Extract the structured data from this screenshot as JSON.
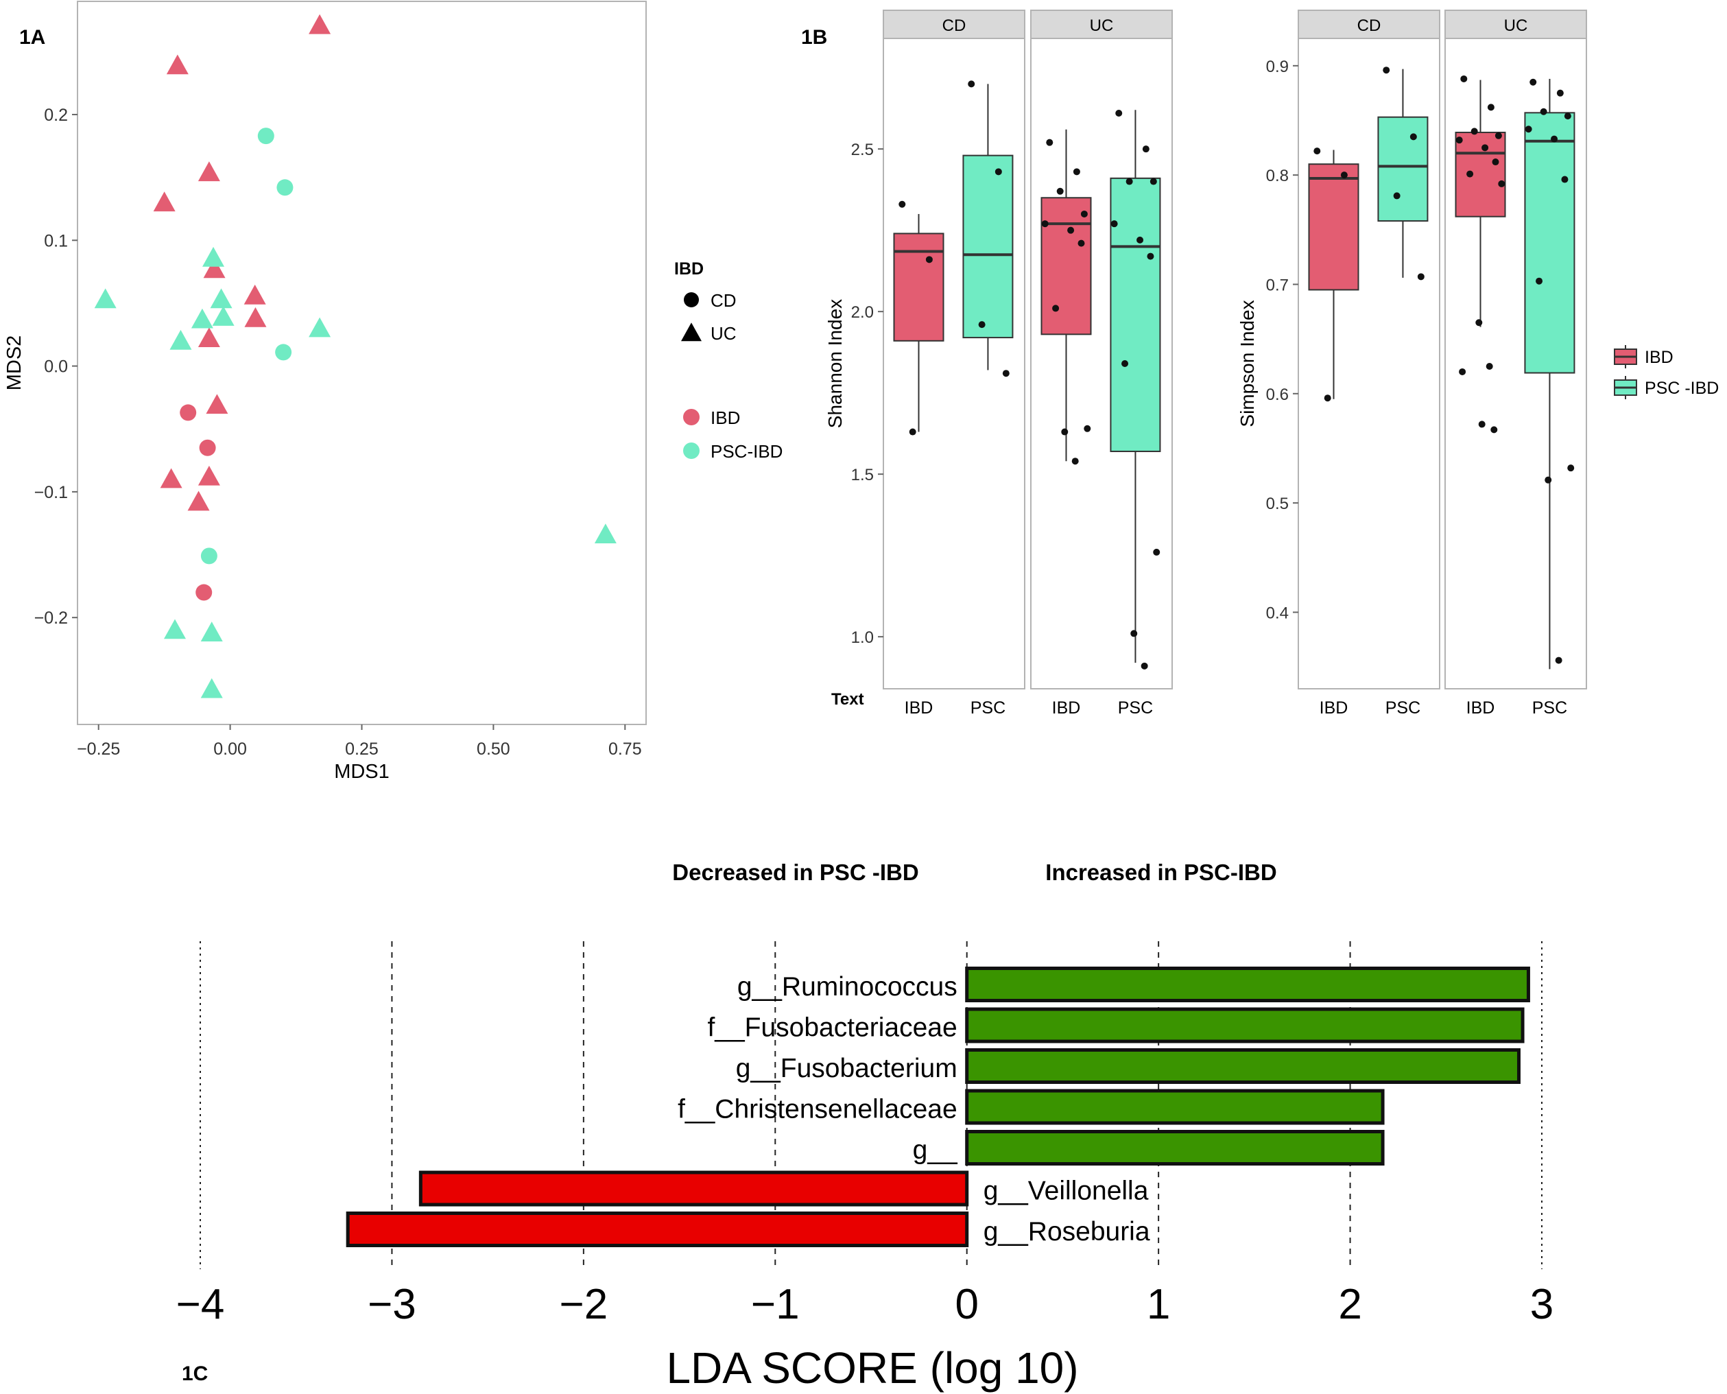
{
  "colors": {
    "ibd": "#e35d72",
    "psc_ibd": "#70ebc3",
    "increased": "#3a9400",
    "decreased": "#e80000",
    "strip": "#d9d9d9",
    "frame": "#b3b3b3",
    "grid": "#d0d0d0",
    "point": "#111111"
  },
  "chart_data": [
    {
      "panel": "1A",
      "panel_label": "1A",
      "type": "scatter",
      "xlabel": "MDS1",
      "ylabel": "MDS2",
      "xlim": [
        -0.29,
        0.79
      ],
      "ylim": [
        -0.285,
        0.29
      ],
      "xticks": [
        -0.25,
        0.0,
        0.25,
        0.5,
        0.75
      ],
      "xtick_labels": [
        "−0.25",
        "0.00",
        "0.25",
        "0.50",
        "0.75"
      ],
      "yticks": [
        -0.2,
        -0.1,
        0.0,
        0.1,
        0.2
      ],
      "ytick_labels": [
        "−0.2",
        "−0.1",
        "0.0",
        "0.1",
        "0.2"
      ],
      "grid": false,
      "legend_shape_title": "IBD",
      "legend_shape": [
        {
          "label": "CD",
          "shape": "circle"
        },
        {
          "label": "UC",
          "shape": "triangle"
        }
      ],
      "legend_color": [
        {
          "label": "IBD",
          "color": "#e35d72"
        },
        {
          "label": "PSC-IBD",
          "color": "#70ebc3"
        }
      ],
      "legend_position": "right",
      "points": [
        {
          "x": 0.17,
          "y": 0.27,
          "shape": "UC",
          "group": "IBD"
        },
        {
          "x": -0.1,
          "y": 0.238,
          "shape": "UC",
          "group": "IBD"
        },
        {
          "x": -0.04,
          "y": 0.153,
          "shape": "UC",
          "group": "IBD"
        },
        {
          "x": -0.125,
          "y": 0.129,
          "shape": "UC",
          "group": "IBD"
        },
        {
          "x": -0.03,
          "y": 0.076,
          "shape": "UC",
          "group": "IBD"
        },
        {
          "x": 0.047,
          "y": 0.055,
          "shape": "UC",
          "group": "IBD"
        },
        {
          "x": 0.048,
          "y": 0.037,
          "shape": "UC",
          "group": "IBD"
        },
        {
          "x": -0.04,
          "y": 0.021,
          "shape": "UC",
          "group": "IBD"
        },
        {
          "x": -0.025,
          "y": -0.032,
          "shape": "UC",
          "group": "IBD"
        },
        {
          "x": -0.112,
          "y": -0.091,
          "shape": "UC",
          "group": "IBD"
        },
        {
          "x": -0.04,
          "y": -0.089,
          "shape": "UC",
          "group": "IBD"
        },
        {
          "x": -0.06,
          "y": -0.109,
          "shape": "UC",
          "group": "IBD"
        },
        {
          "x": -0.08,
          "y": -0.037,
          "shape": "CD",
          "group": "IBD"
        },
        {
          "x": -0.043,
          "y": -0.065,
          "shape": "CD",
          "group": "IBD"
        },
        {
          "x": -0.05,
          "y": -0.18,
          "shape": "CD",
          "group": "IBD"
        },
        {
          "x": 0.068,
          "y": 0.183,
          "shape": "CD",
          "group": "PSC-IBD"
        },
        {
          "x": 0.104,
          "y": 0.142,
          "shape": "CD",
          "group": "PSC-IBD"
        },
        {
          "x": 0.101,
          "y": 0.011,
          "shape": "CD",
          "group": "PSC-IBD"
        },
        {
          "x": -0.04,
          "y": -0.151,
          "shape": "CD",
          "group": "PSC-IBD"
        },
        {
          "x": -0.032,
          "y": 0.085,
          "shape": "UC",
          "group": "PSC-IBD"
        },
        {
          "x": -0.017,
          "y": 0.052,
          "shape": "UC",
          "group": "PSC-IBD"
        },
        {
          "x": -0.237,
          "y": 0.052,
          "shape": "UC",
          "group": "PSC-IBD"
        },
        {
          "x": -0.053,
          "y": 0.036,
          "shape": "UC",
          "group": "PSC-IBD"
        },
        {
          "x": -0.013,
          "y": 0.038,
          "shape": "UC",
          "group": "PSC-IBD"
        },
        {
          "x": -0.094,
          "y": 0.019,
          "shape": "UC",
          "group": "PSC-IBD"
        },
        {
          "x": 0.17,
          "y": 0.029,
          "shape": "UC",
          "group": "PSC-IBD"
        },
        {
          "x": 0.713,
          "y": -0.135,
          "shape": "UC",
          "group": "PSC-IBD"
        },
        {
          "x": -0.105,
          "y": -0.211,
          "shape": "UC",
          "group": "PSC-IBD"
        },
        {
          "x": -0.035,
          "y": -0.213,
          "shape": "UC",
          "group": "PSC-IBD"
        },
        {
          "x": -0.035,
          "y": -0.258,
          "shape": "UC",
          "group": "PSC-IBD"
        }
      ]
    },
    {
      "panel": "1B",
      "panel_label": "1B",
      "type": "box",
      "metric": "Shannon",
      "ylabel": "Shannon Index",
      "ylim": [
        0.84,
        2.84
      ],
      "yticks": [
        1.0,
        1.5,
        2.0,
        2.5
      ],
      "ytick_labels": [
        "1.0",
        "1.5",
        "2.0",
        "2.5"
      ],
      "corner_label": "Text",
      "categories": [
        "IBD",
        "PSC"
      ],
      "facets": [
        {
          "name": "CD",
          "boxes": [
            {
              "group": "IBD",
              "q1": 1.91,
              "median": 2.185,
              "q3": 2.24,
              "lower": 1.63,
              "upper": 2.3,
              "points": [
                2.33,
                2.16,
                1.63
              ]
            },
            {
              "group": "PSC",
              "q1": 1.92,
              "median": 2.175,
              "q3": 2.48,
              "lower": 1.82,
              "upper": 2.7,
              "points": [
                2.7,
                2.43,
                1.96,
                1.81
              ]
            }
          ]
        },
        {
          "name": "UC",
          "boxes": [
            {
              "group": "IBD",
              "q1": 1.93,
              "median": 2.27,
              "q3": 2.35,
              "lower": 1.54,
              "upper": 2.56,
              "points": [
                2.52,
                2.43,
                2.37,
                2.3,
                2.27,
                2.25,
                2.21,
                2.01,
                1.64,
                1.63,
                1.54
              ]
            },
            {
              "group": "PSC",
              "q1": 1.57,
              "median": 2.2,
              "q3": 2.41,
              "lower": 0.92,
              "upper": 2.62,
              "points": [
                2.61,
                2.5,
                2.4,
                2.4,
                2.27,
                2.22,
                2.17,
                1.84,
                1.26,
                1.01,
                0.91
              ]
            }
          ]
        }
      ]
    },
    {
      "panel": "1B",
      "type": "box",
      "metric": "Simpson",
      "ylabel": "Simpson Index",
      "ylim": [
        0.33,
        0.925
      ],
      "yticks": [
        0.4,
        0.5,
        0.6,
        0.7,
        0.8,
        0.9
      ],
      "ytick_labels": [
        "0.4",
        "0.5",
        "0.6",
        "0.7",
        "0.8",
        "0.9"
      ],
      "categories": [
        "IBD",
        "PSC"
      ],
      "legend": [
        {
          "label": "IBD",
          "color": "#e35d72"
        },
        {
          "label": "PSC -IBD",
          "color": "#70ebc3"
        }
      ],
      "legend_position": "right",
      "facets": [
        {
          "name": "CD",
          "boxes": [
            {
              "group": "IBD",
              "q1": 0.695,
              "median": 0.797,
              "q3": 0.81,
              "lower": 0.595,
              "upper": 0.823,
              "points": [
                0.822,
                0.8,
                0.596
              ]
            },
            {
              "group": "PSC",
              "q1": 0.758,
              "median": 0.808,
              "q3": 0.853,
              "lower": 0.706,
              "upper": 0.897,
              "points": [
                0.896,
                0.835,
                0.781,
                0.707
              ]
            }
          ]
        },
        {
          "name": "UC",
          "boxes": [
            {
              "group": "IBD",
              "q1": 0.762,
              "median": 0.82,
              "q3": 0.839,
              "lower": 0.661,
              "upper": 0.887,
              "points": [
                0.888,
                0.862,
                0.84,
                0.836,
                0.832,
                0.825,
                0.812,
                0.801,
                0.792,
                0.665,
                0.625,
                0.62,
                0.572,
                0.567
              ]
            },
            {
              "group": "PSC",
              "q1": 0.619,
              "median": 0.831,
              "q3": 0.857,
              "lower": 0.348,
              "upper": 0.888,
              "points": [
                0.885,
                0.875,
                0.858,
                0.854,
                0.842,
                0.833,
                0.796,
                0.703,
                0.532,
                0.521,
                0.356
              ]
            }
          ]
        }
      ]
    },
    {
      "panel": "1C",
      "panel_label": "1C",
      "type": "bar",
      "orientation": "horizontal",
      "xlabel": "LDA SCORE (log 10)",
      "xlim": [
        -4.2,
        3.25
      ],
      "xticks": [
        -4,
        -3,
        -2,
        -1,
        0,
        1,
        2,
        3
      ],
      "xtick_labels": [
        "−4",
        "−3",
        "−2",
        "−1",
        "0",
        "1",
        "2",
        "3"
      ],
      "header_left": "Decreased in PSC -IBD",
      "header_right": "Increased in PSC-IBD",
      "grid": true,
      "categories": [
        "g__Ruminococcus",
        "f__Fusobacteriaceae",
        "g__Fusobacterium",
        "f__Christensenellaceae",
        "g__",
        "g__Veillonella",
        "g__Roseburia"
      ],
      "values": [
        2.93,
        2.9,
        2.88,
        2.17,
        2.17,
        -2.85,
        -3.23
      ]
    }
  ]
}
